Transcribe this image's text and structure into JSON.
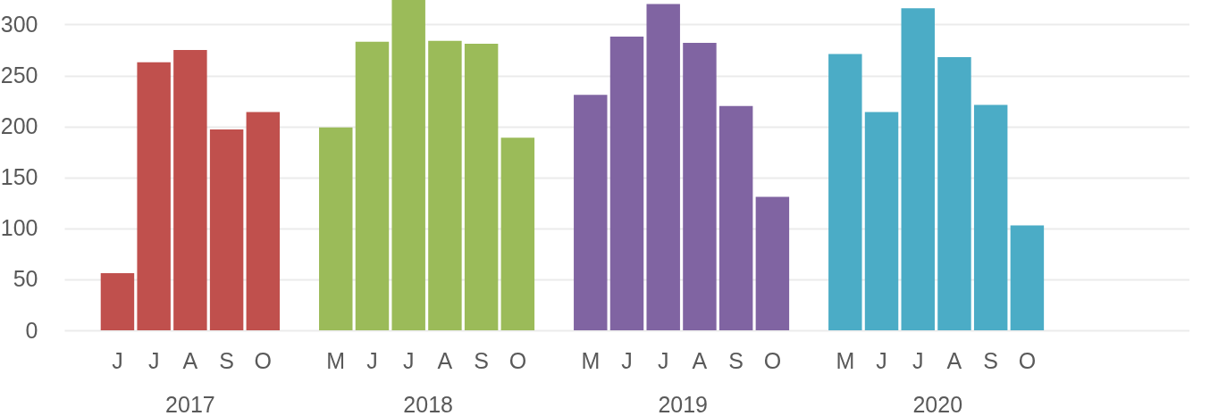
{
  "chart_data": {
    "type": "bar",
    "categories": [
      "J",
      "J",
      "A",
      "S",
      "O",
      "M",
      "J",
      "J",
      "A",
      "S",
      "O",
      "M",
      "J",
      "J",
      "A",
      "S",
      "O",
      "M",
      "J",
      "J",
      "A",
      "S",
      "O"
    ],
    "series": [
      {
        "name": "2017",
        "color": "#c0504d",
        "values": [
          56,
          263,
          275,
          197,
          214,
          null,
          null,
          null,
          null,
          null,
          null,
          null,
          null,
          null,
          null,
          null,
          null,
          null,
          null,
          null,
          null,
          null,
          null
        ]
      },
      {
        "name": "2018",
        "color": "#9bbb59",
        "values": [
          null,
          null,
          null,
          null,
          null,
          199,
          283,
          324,
          284,
          281,
          189,
          null,
          null,
          null,
          null,
          null,
          null,
          null,
          null,
          null,
          null,
          null,
          null
        ]
      },
      {
        "name": "2019",
        "color": "#8064a2",
        "values": [
          null,
          null,
          null,
          null,
          null,
          null,
          null,
          null,
          null,
          null,
          null,
          231,
          288,
          320,
          282,
          220,
          131,
          null,
          null,
          null,
          null,
          null,
          null
        ]
      },
      {
        "name": "2020",
        "color": "#4bacc6",
        "values": [
          null,
          null,
          null,
          null,
          null,
          null,
          null,
          null,
          null,
          null,
          null,
          null,
          null,
          null,
          null,
          null,
          null,
          271,
          214,
          316,
          268,
          221,
          103
        ]
      }
    ],
    "ylim": [
      0,
      324
    ],
    "yticks": [
      0,
      50,
      100,
      150,
      200,
      250,
      300
    ],
    "grid": "y",
    "legend": false
  }
}
